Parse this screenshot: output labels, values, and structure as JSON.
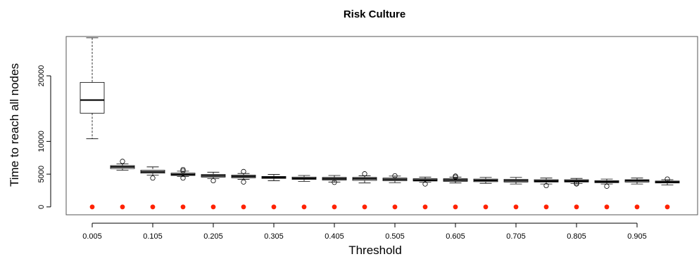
{
  "chart_data": {
    "type": "box",
    "title": "Risk Culture",
    "xlabel": "Threshold",
    "ylabel": "Time to reach all nodes",
    "ylim": [
      -1200,
      26000
    ],
    "y_ticks": [
      0,
      5000,
      10000,
      20000
    ],
    "x_tick_labels": [
      "0.005",
      "0.105",
      "0.205",
      "0.305",
      "0.405",
      "0.505",
      "0.605",
      "0.705",
      "0.805",
      "0.905"
    ],
    "boxes": [
      {
        "x": 0.005,
        "whisker_low": 10400,
        "q1": 14300,
        "median": 16300,
        "q3": 19000,
        "whisker_high": 25800,
        "outliers": []
      },
      {
        "x": 0.055,
        "whisker_low": 5600,
        "q1": 5850,
        "median": 6100,
        "q3": 6300,
        "whisker_high": 6550,
        "outliers": [
          6950
        ]
      },
      {
        "x": 0.105,
        "whisker_low": 4850,
        "q1": 5150,
        "median": 5350,
        "q3": 5600,
        "whisker_high": 6100,
        "outliers": [
          4400
        ]
      },
      {
        "x": 0.155,
        "whisker_low": 4650,
        "q1": 4800,
        "median": 4950,
        "q3": 5150,
        "whisker_high": 5450,
        "outliers": [
          5700,
          5500,
          4400
        ]
      },
      {
        "x": 0.205,
        "whisker_low": 4300,
        "q1": 4550,
        "median": 4750,
        "q3": 4950,
        "whisker_high": 5300,
        "outliers": [
          4000
        ]
      },
      {
        "x": 0.255,
        "whisker_low": 4200,
        "q1": 4450,
        "median": 4650,
        "q3": 4850,
        "whisker_high": 5100,
        "outliers": [
          5400,
          3800
        ]
      },
      {
        "x": 0.305,
        "whisker_low": 4000,
        "q1": 4350,
        "median": 4500,
        "q3": 4650,
        "whisker_high": 4950,
        "outliers": []
      },
      {
        "x": 0.355,
        "whisker_low": 3900,
        "q1": 4200,
        "median": 4350,
        "q3": 4550,
        "whisker_high": 4800,
        "outliers": []
      },
      {
        "x": 0.405,
        "whisker_low": 3800,
        "q1": 4100,
        "median": 4300,
        "q3": 4500,
        "whisker_high": 4800,
        "outliers": [
          3750
        ]
      },
      {
        "x": 0.455,
        "whisker_low": 3650,
        "q1": 4050,
        "median": 4300,
        "q3": 4500,
        "whisker_high": 4750,
        "outliers": [
          5050
        ]
      },
      {
        "x": 0.505,
        "whisker_low": 3700,
        "q1": 4000,
        "median": 4200,
        "q3": 4400,
        "whisker_high": 4700,
        "outliers": [
          4750
        ]
      },
      {
        "x": 0.555,
        "whisker_low": 3750,
        "q1": 3950,
        "median": 4100,
        "q3": 4300,
        "whisker_high": 4550,
        "outliers": [
          3500
        ]
      },
      {
        "x": 0.605,
        "whisker_low": 3650,
        "q1": 3900,
        "median": 4100,
        "q3": 4300,
        "whisker_high": 4550,
        "outliers": [
          4700,
          4550
        ]
      },
      {
        "x": 0.655,
        "whisker_low": 3600,
        "q1": 3850,
        "median": 4050,
        "q3": 4250,
        "whisker_high": 4500,
        "outliers": []
      },
      {
        "x": 0.705,
        "whisker_low": 3500,
        "q1": 3800,
        "median": 4000,
        "q3": 4200,
        "whisker_high": 4500,
        "outliers": []
      },
      {
        "x": 0.755,
        "whisker_low": 3500,
        "q1": 3800,
        "median": 3950,
        "q3": 4150,
        "whisker_high": 4400,
        "outliers": [
          3250
        ]
      },
      {
        "x": 0.805,
        "whisker_low": 3550,
        "q1": 3800,
        "median": 3950,
        "q3": 4150,
        "whisker_high": 4350,
        "outliers": [
          3500,
          3650
        ]
      },
      {
        "x": 0.855,
        "whisker_low": 3500,
        "q1": 3700,
        "median": 3850,
        "q3": 4000,
        "whisker_high": 4250,
        "outliers": [
          3150
        ]
      },
      {
        "x": 0.905,
        "whisker_low": 3500,
        "q1": 3800,
        "median": 4000,
        "q3": 4150,
        "whisker_high": 4400,
        "outliers": []
      },
      {
        "x": 0.955,
        "whisker_low": 3350,
        "q1": 3650,
        "median": 3800,
        "q3": 3950,
        "whisker_high": 4150,
        "outliers": [
          4250
        ]
      }
    ],
    "baseline_points": {
      "y": 0,
      "x": [
        0.005,
        0.055,
        0.105,
        0.155,
        0.205,
        0.255,
        0.305,
        0.355,
        0.405,
        0.455,
        0.505,
        0.555,
        0.605,
        0.655,
        0.705,
        0.755,
        0.805,
        0.855,
        0.905,
        0.955
      ],
      "color": "#ff2200"
    },
    "grid": false,
    "legend": "none"
  }
}
